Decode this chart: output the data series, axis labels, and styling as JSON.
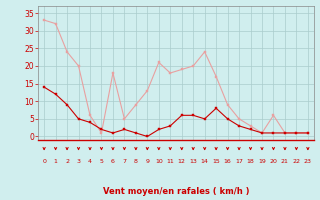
{
  "x": [
    0,
    1,
    2,
    3,
    4,
    5,
    6,
    7,
    8,
    9,
    10,
    11,
    12,
    13,
    14,
    15,
    16,
    17,
    18,
    19,
    20,
    21,
    22,
    23
  ],
  "y_moyen": [
    14,
    12,
    9,
    5,
    4,
    2,
    1,
    2,
    1,
    0,
    2,
    3,
    6,
    6,
    5,
    8,
    5,
    3,
    2,
    1,
    1,
    1,
    1,
    1
  ],
  "y_rafales": [
    33,
    32,
    24,
    20,
    6,
    1,
    18,
    5,
    9,
    13,
    21,
    18,
    19,
    20,
    24,
    17,
    9,
    5,
    3,
    1,
    6,
    1,
    1,
    1
  ],
  "background_color": "#d0eeee",
  "grid_color": "#aacccc",
  "line_color_moyen": "#cc0000",
  "line_color_rafales": "#e8a0a0",
  "xlabel": "Vent moyen/en rafales ( km/h )",
  "ylim": [
    -1,
    37
  ],
  "yticks": [
    0,
    5,
    10,
    15,
    20,
    25,
    30,
    35
  ],
  "xticks": [
    0,
    1,
    2,
    3,
    4,
    5,
    6,
    7,
    8,
    9,
    10,
    11,
    12,
    13,
    14,
    15,
    16,
    17,
    18,
    19,
    20,
    21,
    22,
    23
  ],
  "arrow_color": "#cc0000",
  "xlabel_color": "#cc0000",
  "tick_color": "#cc0000"
}
